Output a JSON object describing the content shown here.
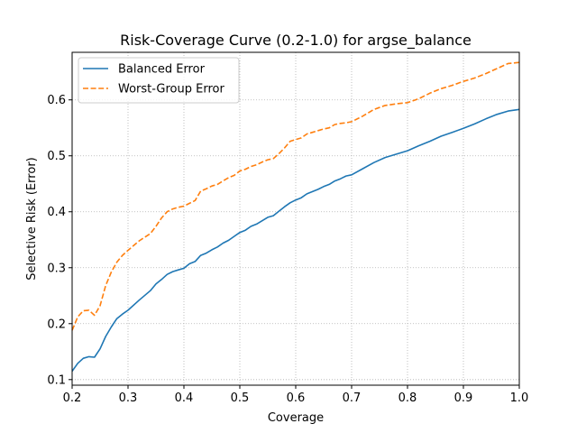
{
  "chart_data": {
    "type": "line",
    "title": "Risk-Coverage Curve (0.2-1.0) for argse_balance",
    "xlabel": "Coverage",
    "ylabel": "Selective Risk (Error)",
    "xlim": [
      0.2,
      1.0
    ],
    "ylim": [
      0.09,
      0.685
    ],
    "xticks": [
      0.2,
      0.3,
      0.4,
      0.5,
      0.6,
      0.7,
      0.8,
      0.9,
      1.0
    ],
    "xtick_labels": [
      "0.2",
      "0.3",
      "0.4",
      "0.5",
      "0.6",
      "0.7",
      "0.8",
      "0.9",
      "1.0"
    ],
    "yticks": [
      0.1,
      0.2,
      0.3,
      0.4,
      0.5,
      0.6
    ],
    "ytick_labels": [
      "0.1",
      "0.2",
      "0.3",
      "0.4",
      "0.5",
      "0.6"
    ],
    "grid": true,
    "legend_position": "top-left",
    "x": [
      0.2,
      0.21,
      0.22,
      0.23,
      0.24,
      0.25,
      0.26,
      0.27,
      0.28,
      0.29,
      0.3,
      0.32,
      0.34,
      0.35,
      0.36,
      0.37,
      0.38,
      0.39,
      0.4,
      0.41,
      0.42,
      0.43,
      0.44,
      0.45,
      0.46,
      0.47,
      0.48,
      0.49,
      0.5,
      0.51,
      0.52,
      0.53,
      0.54,
      0.55,
      0.56,
      0.57,
      0.58,
      0.59,
      0.6,
      0.61,
      0.62,
      0.63,
      0.64,
      0.65,
      0.66,
      0.67,
      0.68,
      0.69,
      0.7,
      0.72,
      0.74,
      0.76,
      0.78,
      0.8,
      0.82,
      0.84,
      0.86,
      0.88,
      0.9,
      0.92,
      0.94,
      0.96,
      0.98,
      1.0
    ],
    "series": [
      {
        "name": "Balanced Error",
        "color": "#1f77b4",
        "style": "solid",
        "values": [
          0.115,
          0.129,
          0.138,
          0.141,
          0.14,
          0.155,
          0.177,
          0.194,
          0.209,
          0.217,
          0.224,
          0.242,
          0.259,
          0.271,
          0.279,
          0.288,
          0.293,
          0.296,
          0.299,
          0.307,
          0.311,
          0.322,
          0.326,
          0.332,
          0.337,
          0.344,
          0.349,
          0.356,
          0.363,
          0.367,
          0.374,
          0.378,
          0.384,
          0.39,
          0.393,
          0.401,
          0.409,
          0.416,
          0.421,
          0.425,
          0.432,
          0.436,
          0.44,
          0.445,
          0.449,
          0.455,
          0.459,
          0.464,
          0.466,
          0.477,
          0.488,
          0.497,
          0.503,
          0.509,
          0.518,
          0.526,
          0.535,
          0.542,
          0.549,
          0.557,
          0.566,
          0.574,
          0.58,
          0.583
        ]
      },
      {
        "name": "Worst-Group Error",
        "color": "#ff7f0e",
        "style": "dashed",
        "values": [
          0.188,
          0.212,
          0.223,
          0.224,
          0.215,
          0.232,
          0.268,
          0.292,
          0.31,
          0.322,
          0.331,
          0.348,
          0.361,
          0.374,
          0.389,
          0.4,
          0.405,
          0.408,
          0.41,
          0.415,
          0.42,
          0.437,
          0.441,
          0.446,
          0.449,
          0.455,
          0.461,
          0.465,
          0.473,
          0.476,
          0.481,
          0.484,
          0.489,
          0.493,
          0.495,
          0.504,
          0.514,
          0.526,
          0.529,
          0.532,
          0.539,
          0.542,
          0.545,
          0.548,
          0.55,
          0.556,
          0.558,
          0.559,
          0.561,
          0.571,
          0.583,
          0.59,
          0.593,
          0.595,
          0.602,
          0.612,
          0.62,
          0.626,
          0.633,
          0.639,
          0.647,
          0.656,
          0.665,
          0.667
        ]
      }
    ]
  }
}
